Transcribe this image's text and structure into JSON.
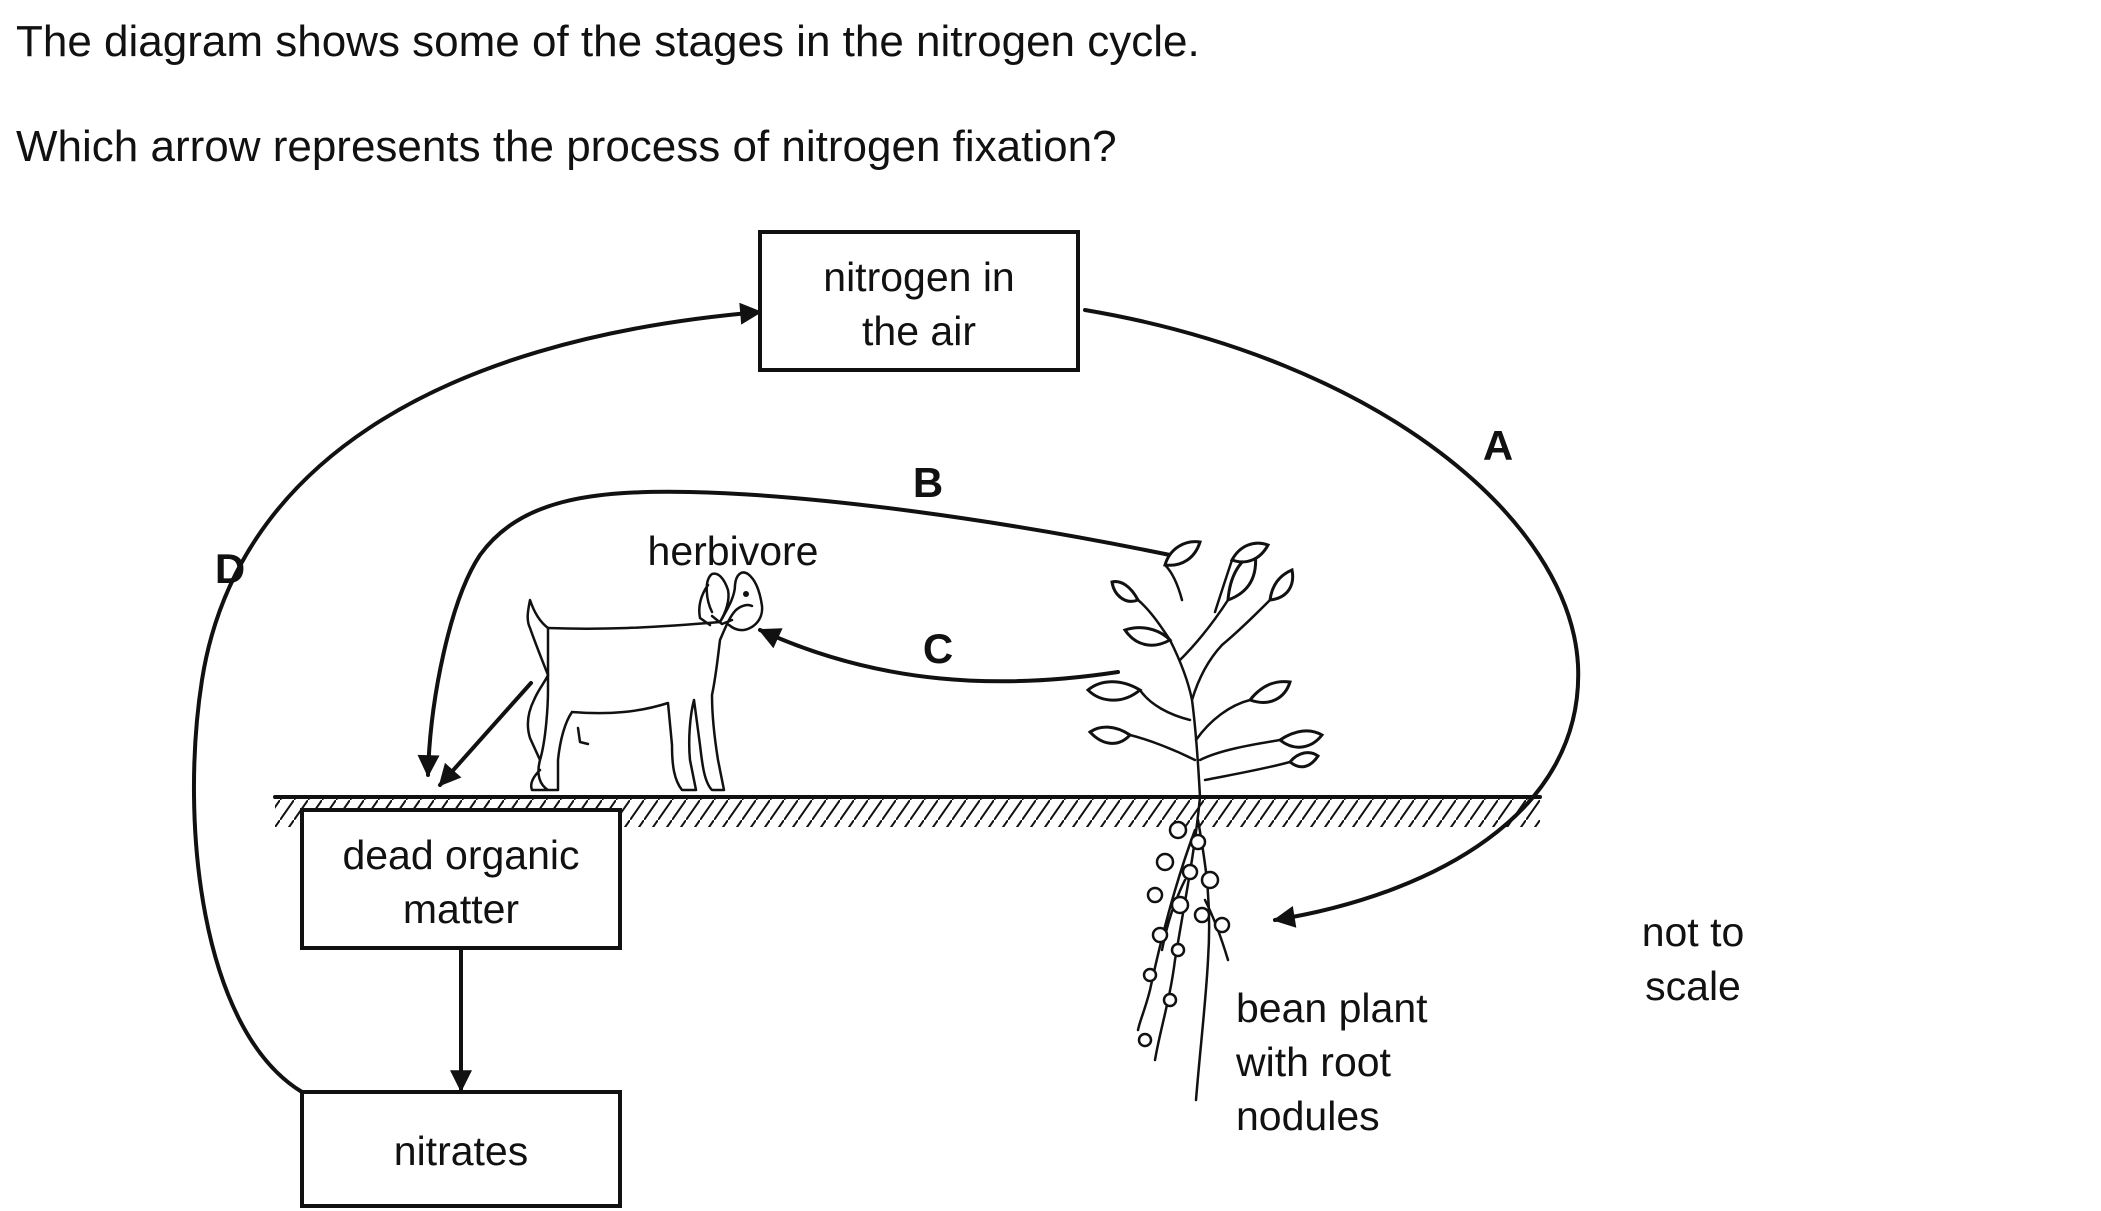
{
  "question": {
    "line1": "The diagram shows some of the stages in the nitrogen cycle.",
    "line2": "Which arrow represents the process of nitrogen fixation?"
  },
  "diagram": {
    "boxes": {
      "nitrogen_air": [
        "nitrogen in",
        "the air"
      ],
      "dead_organic": [
        "dead organic",
        "matter"
      ],
      "nitrates": [
        "nitrates"
      ]
    },
    "labels": {
      "herbivore": "herbivore",
      "bean_plant": [
        "bean plant",
        "with root",
        "nodules"
      ],
      "scale_note": [
        "not to",
        "scale"
      ]
    },
    "arrows": {
      "a": "A",
      "b": "B",
      "c": "C",
      "d": "D"
    }
  }
}
